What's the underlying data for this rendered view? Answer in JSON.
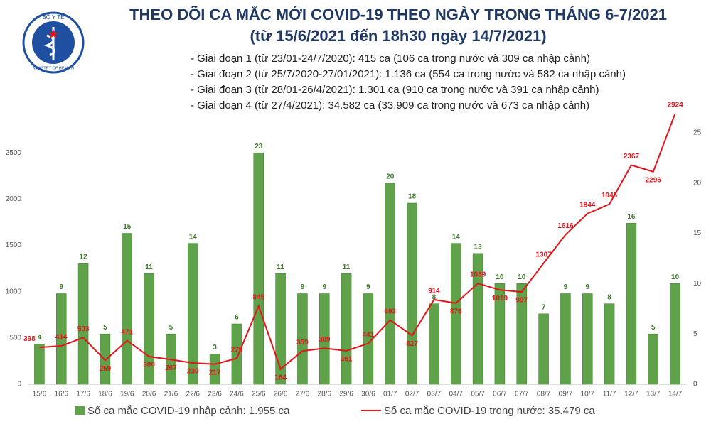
{
  "logo": {
    "top": "BỘ Y TẾ",
    "bottom": "MINISTRY OF HEALTH"
  },
  "chart_data": {
    "type": "bar-line",
    "title": "THEO DÕI CA MẮC MỚI COVID-19 THEO NGÀY TRONG THÁNG 6-7/2021",
    "subtitle": "(từ 15/6/2021 đến 18h30 ngày 14/7/2021)",
    "annotations": [
      "- Giai đoạn 1 (từ 23/01-24/7/2020): 415 ca (106 ca trong nước và 309 ca nhập cảnh)",
      "- Giai đoạn 2 (từ 25/7/2020-27/01/2021): 1.136 ca (554 ca trong nước và 582 ca nhập cảnh)",
      "- Giai đoạn 3 (từ 28/01-26/4/2021): 1.301 ca (910 ca trong nước và 391 ca nhập cảnh)",
      "- Giai đoạn 4 (từ 27/4/2021): 34.582 ca (33.909 ca trong nước và 673 ca nhập cảnh)"
    ],
    "categories": [
      "15/6",
      "16/6",
      "17/6",
      "18/6",
      "19/6",
      "20/6",
      "21/6",
      "22/6",
      "23/6",
      "24/6",
      "25/6",
      "26/6",
      "27/6",
      "28/6",
      "29/6",
      "30/6",
      "01/7",
      "02/7",
      "03/7",
      "04/7",
      "05/7",
      "06/7",
      "07/7",
      "08/7",
      "09/7",
      "10/7",
      "11/7",
      "12/7",
      "13/7",
      "14/7"
    ],
    "series": [
      {
        "name": "Số ca mắc COVID-19 nhập cảnh: 1.955 ca",
        "type": "bar",
        "axis": "y2",
        "color": "#5fa249",
        "values": [
          4,
          9,
          12,
          5,
          15,
          11,
          5,
          14,
          3,
          6,
          23,
          11,
          9,
          9,
          11,
          9,
          20,
          18,
          8,
          14,
          13,
          10,
          10,
          7,
          9,
          9,
          8,
          16,
          5,
          10
        ]
      },
      {
        "name": "Số ca mắc COVID-19 trong nước: 35.479 ca",
        "type": "line",
        "color": "#e3151b",
        "values": [
          398,
          414,
          503,
          259,
          471,
          300,
          267,
          230,
          217,
          279,
          845,
          164,
          359,
          389,
          361,
          441,
          693,
          527,
          914,
          876,
          1089,
          1019,
          997,
          1307,
          1616,
          1844,
          1945,
          2367,
          2296,
          2924
        ]
      }
    ],
    "ylim": [
      0,
      3000
    ],
    "yticks": [
      0,
      500,
      1000,
      1500,
      2000,
      2500
    ],
    "y2lim": [
      0,
      27.6
    ],
    "y2ticks": [
      0,
      5,
      10,
      15,
      20,
      25
    ],
    "grid": false,
    "legend": "bottom"
  }
}
